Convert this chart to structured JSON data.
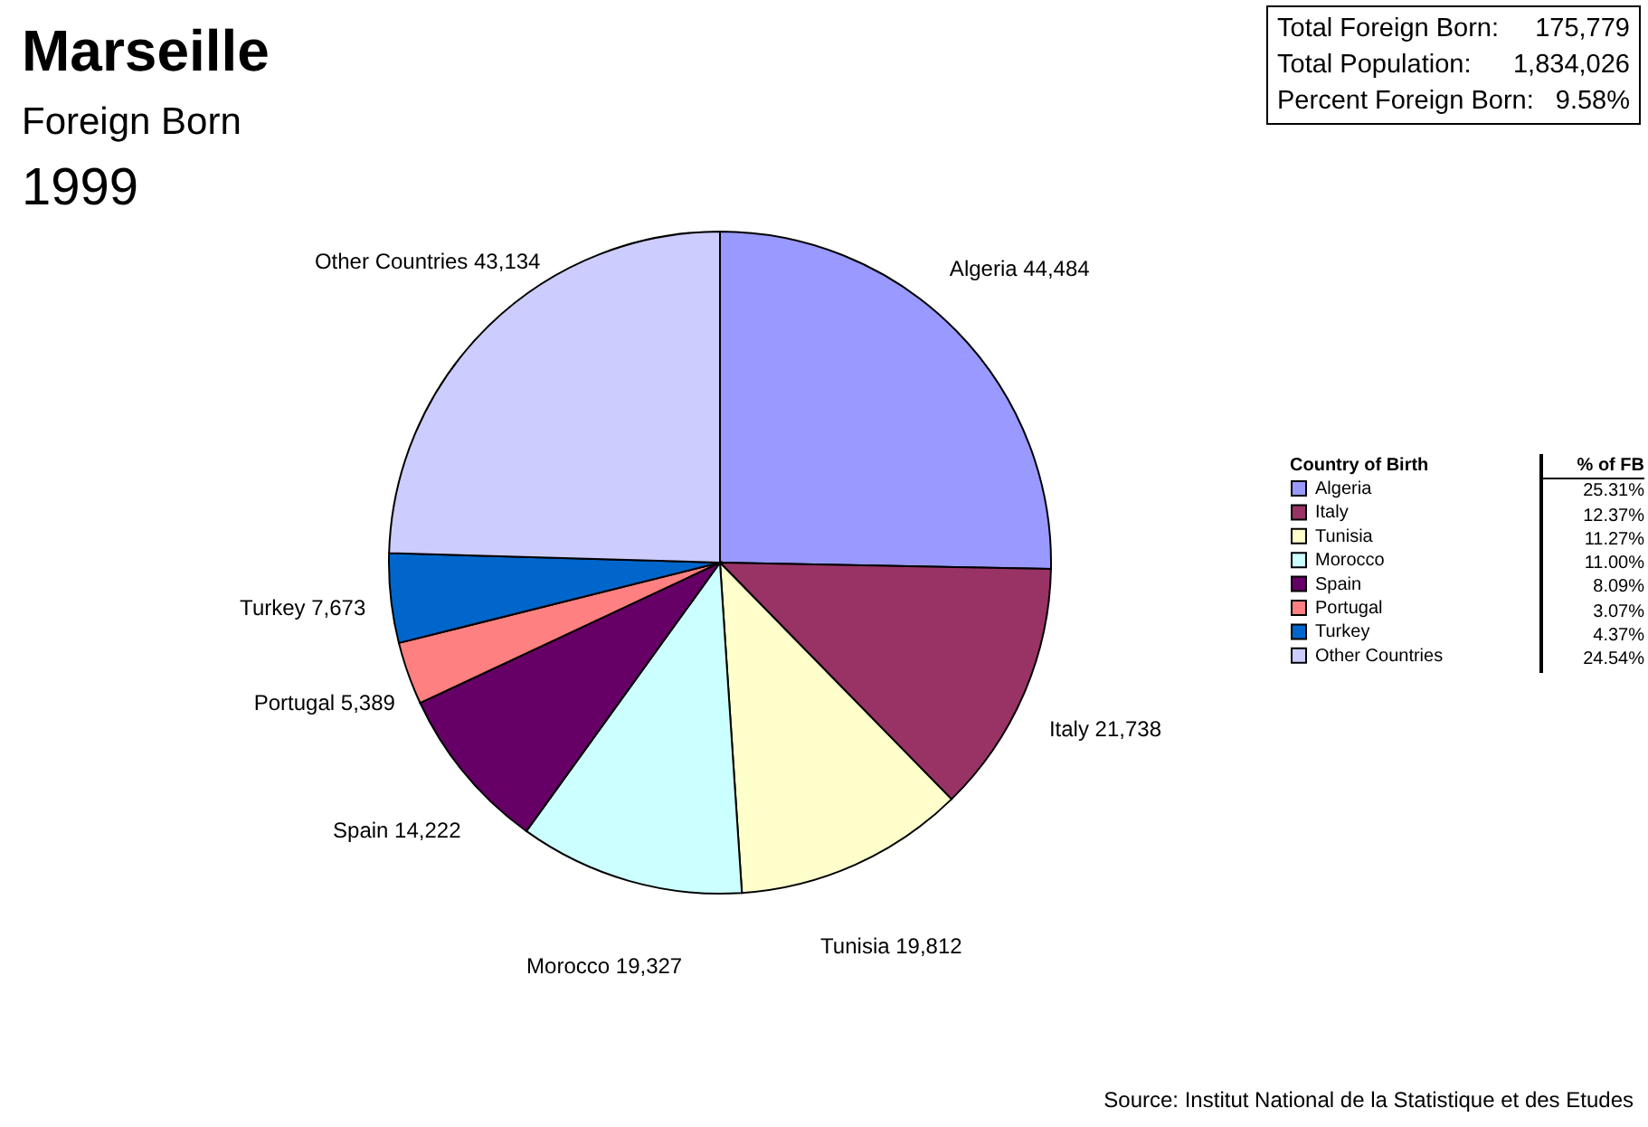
{
  "chart_data": {
    "type": "pie",
    "title": "Marseille",
    "subtitle": "Foreign Born",
    "categories": [
      "Algeria",
      "Italy",
      "Tunisia",
      "Morocco",
      "Spain",
      "Portugal",
      "Turkey",
      "Other Countries"
    ],
    "values": [
      44484,
      21738,
      19812,
      19327,
      14222,
      5389,
      7673,
      43134
    ],
    "colors": [
      "#9999ff",
      "#993366",
      "#ffffcc",
      "#ccffff",
      "#660066",
      "#ff8080",
      "#0066cc",
      "#ccccff"
    ],
    "value_labels": [
      "44,484",
      "21,738",
      "19,812",
      "19,327",
      "14,222",
      "5,389",
      "7,673",
      "43,134"
    ],
    "legend": "right",
    "legend_title": "Country of Birth",
    "annotations": [
      "1999",
      "Total Foreign Born: 175,779",
      "Total Population: 1,834,026",
      "Percent Foreign Born: 9.58%",
      "% of FB",
      "25.31%",
      "12.37%",
      "11.27%",
      "11.00%",
      "8.09%",
      "3.07%",
      "4.37%",
      "24.54%",
      "Source: Institut National de la Statistique et des Etudes"
    ]
  }
}
